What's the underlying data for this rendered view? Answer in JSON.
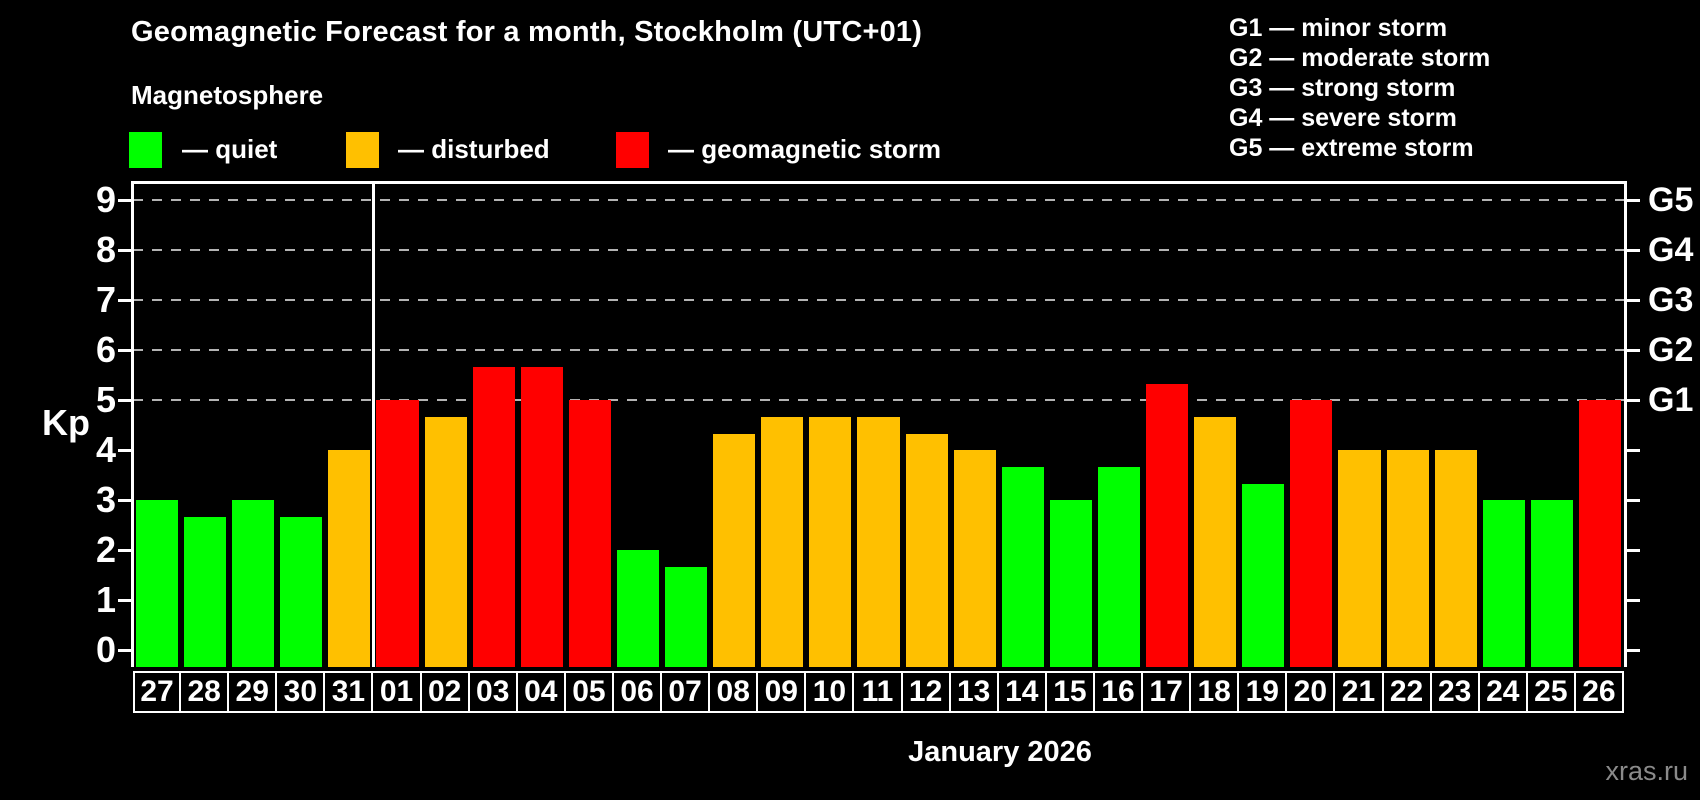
{
  "header": {
    "title": "Geomagnetic Forecast for a month, Stockholm (UTC+01)",
    "subtitle": "Magnetosphere"
  },
  "legend": {
    "items": [
      {
        "key": "quiet",
        "label": "— quiet",
        "color": "#00ff00"
      },
      {
        "key": "disturbed",
        "label": "— disturbed",
        "color": "#ffc000"
      },
      {
        "key": "storm",
        "label": "— geomagnetic storm",
        "color": "#ff0000"
      }
    ]
  },
  "g_scale_legend": {
    "items": [
      "G1 — minor storm",
      "G2 — moderate storm",
      "G3 — strong storm",
      "G4 — severe storm",
      "G5 — extreme storm"
    ]
  },
  "footer": {
    "x_axis_title": "January 2026",
    "watermark": "xras.ru"
  },
  "chart_data": {
    "type": "bar",
    "title": "Geomagnetic Forecast for a month, Stockholm (UTC+01)",
    "xlabel": "January 2026",
    "ylabel": "Kp",
    "ylim": [
      0,
      9
    ],
    "y_ticks": [
      0,
      1,
      2,
      3,
      4,
      5,
      6,
      7,
      8,
      9
    ],
    "gridlines_at": [
      5,
      6,
      7,
      8,
      9
    ],
    "grid_style": "horizontal dashed lines at storm levels only",
    "right_axis_labels": [
      {
        "value": 5,
        "label": "G1"
      },
      {
        "value": 6,
        "label": "G2"
      },
      {
        "value": 7,
        "label": "G3"
      },
      {
        "value": 8,
        "label": "G4"
      },
      {
        "value": 9,
        "label": "G5"
      }
    ],
    "categories": [
      "27",
      "28",
      "29",
      "30",
      "31",
      "01",
      "02",
      "03",
      "04",
      "05",
      "06",
      "07",
      "08",
      "09",
      "10",
      "11",
      "12",
      "13",
      "14",
      "15",
      "16",
      "17",
      "18",
      "19",
      "20",
      "21",
      "22",
      "23",
      "24",
      "25",
      "26"
    ],
    "values": [
      3,
      2.67,
      3,
      2.67,
      4,
      5,
      4.67,
      5.67,
      5.67,
      5,
      2,
      1.67,
      4.33,
      4.67,
      4.67,
      4.67,
      4.33,
      4,
      3.67,
      3,
      3.67,
      5.33,
      4.67,
      3.33,
      5,
      4,
      4,
      4,
      3,
      3,
      5
    ],
    "statuses": [
      "quiet",
      "quiet",
      "quiet",
      "quiet",
      "disturbed",
      "storm",
      "disturbed",
      "storm",
      "storm",
      "storm",
      "quiet",
      "quiet",
      "disturbed",
      "disturbed",
      "disturbed",
      "disturbed",
      "disturbed",
      "disturbed",
      "quiet",
      "quiet",
      "quiet",
      "storm",
      "disturbed",
      "quiet",
      "storm",
      "disturbed",
      "disturbed",
      "disturbed",
      "quiet",
      "quiet",
      "storm"
    ],
    "status_colors": {
      "quiet": "#00ff00",
      "disturbed": "#ffc000",
      "storm": "#ff0000"
    },
    "month_divider_after_category": "31",
    "legend_position": "top-left",
    "background": "#000000"
  },
  "colors": {
    "background": "#000000",
    "text": "#ffffff",
    "grid": "#b3b3b3",
    "axis": "#ffffff",
    "watermark": "#8a8a8a"
  }
}
